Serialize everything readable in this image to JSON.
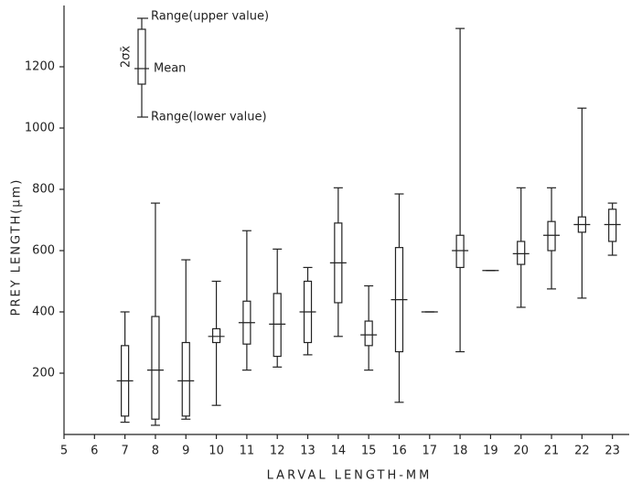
{
  "chart_data": {
    "type": "box",
    "x_label": "LARVAL LENGTH-MM",
    "y_label": "PREY LENGTH(μm)",
    "annotations": {
      "upper": "Range(upper value)",
      "mean": "Mean",
      "lower": "Range(lower value)",
      "sigma": "2σx̄"
    },
    "x": [
      7,
      8,
      9,
      10,
      11,
      12,
      13,
      14,
      15,
      16,
      17,
      18,
      19,
      20,
      21,
      22,
      23
    ],
    "min": [
      40,
      30,
      50,
      95,
      210,
      220,
      260,
      320,
      210,
      105,
      400,
      270,
      535,
      415,
      475,
      445,
      585
    ],
    "max": [
      400,
      755,
      570,
      500,
      665,
      605,
      545,
      805,
      485,
      785,
      400,
      1325,
      535,
      805,
      805,
      1065,
      755
    ],
    "low": [
      60,
      50,
      60,
      300,
      295,
      255,
      300,
      430,
      290,
      270,
      400,
      545,
      535,
      555,
      600,
      660,
      630
    ],
    "high": [
      290,
      385,
      300,
      345,
      435,
      460,
      500,
      690,
      370,
      610,
      400,
      650,
      535,
      630,
      695,
      710,
      735
    ],
    "mean": [
      175,
      210,
      175,
      320,
      365,
      360,
      400,
      560,
      325,
      440,
      400,
      600,
      535,
      590,
      650,
      685,
      685
    ],
    "color": "#222222",
    "xlim": [
      5,
      23.55
    ],
    "xticks": [
      5,
      6,
      7,
      8,
      9,
      10,
      11,
      12,
      13,
      14,
      15,
      16,
      17,
      18,
      19,
      20,
      21,
      22,
      23
    ],
    "ylim": [
      0,
      1400
    ],
    "yticks": [
      200,
      400,
      600,
      800,
      1000,
      1200
    ]
  }
}
